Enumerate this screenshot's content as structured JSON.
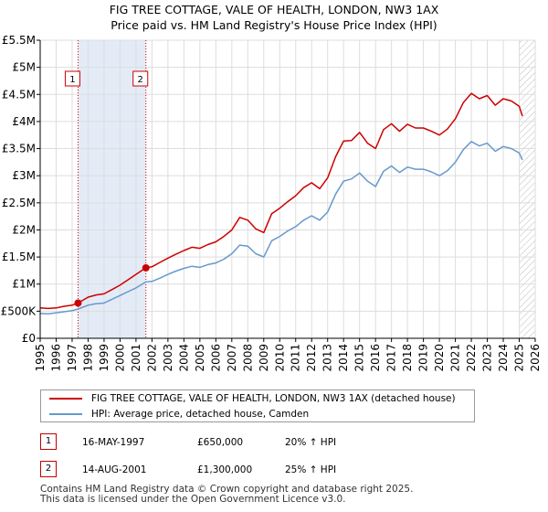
{
  "title_line1": "FIG TREE COTTAGE, VALE OF HEALTH, LONDON, NW3 1AX",
  "title_line2": "Price paid vs. HM Land Registry's House Price Index (HPI)",
  "colors": {
    "property": "#cc0000",
    "hpi": "#6699cc",
    "shade": "#dce6f5",
    "grid": "#dddddd",
    "hatch": "#bbbbbb"
  },
  "chart_data": {
    "type": "line",
    "title": "FIG TREE COTTAGE, VALE OF HEALTH, LONDON, NW3 1AX — Price paid vs. HM Land Registry's House Price Index (HPI)",
    "xlabel": "",
    "ylabel": "",
    "xlim": [
      1995,
      2026
    ],
    "ylim": [
      0,
      5500000
    ],
    "x_ticks": [
      1995,
      1996,
      1997,
      1998,
      1999,
      2000,
      2001,
      2002,
      2003,
      2004,
      2005,
      2006,
      2007,
      2008,
      2009,
      2010,
      2011,
      2012,
      2013,
      2014,
      2015,
      2016,
      2017,
      2018,
      2019,
      2020,
      2021,
      2022,
      2023,
      2024,
      2025,
      2026
    ],
    "x_tick_labels": [
      "1995",
      "1996",
      "1997",
      "1998",
      "1999",
      "2000",
      "2001",
      "2002",
      "2003",
      "2004",
      "2005",
      "2006",
      "2007",
      "2008",
      "2009",
      "2010",
      "2011",
      "2012",
      "2013",
      "2014",
      "2015",
      "2016",
      "2017",
      "2018",
      "2019",
      "2020",
      "2021",
      "2022",
      "2023",
      "2024",
      "2025",
      "2026"
    ],
    "y_ticks": [
      0,
      500000,
      1000000,
      1500000,
      2000000,
      2500000,
      3000000,
      3500000,
      4000000,
      4500000,
      5000000,
      5500000
    ],
    "y_tick_labels": [
      "£0",
      "£500K",
      "£1M",
      "£1.5M",
      "£2M",
      "£2.5M",
      "£3M",
      "£3.5M",
      "£4M",
      "£4.5M",
      "£5M",
      "£5.5M"
    ],
    "grid": true,
    "shaded_ranges": [
      {
        "from": 1997.37,
        "to": 2001.62
      }
    ],
    "future_hatch_from": 2025.0,
    "legend_position": "below",
    "series": [
      {
        "name": "FIG TREE COTTAGE, VALE OF HEALTH, LONDON, NW3 1AX (detached house)",
        "color": "#cc0000",
        "x": [
          1995,
          1995.5,
          1996,
          1996.5,
          1997,
          1997.37,
          1998,
          1998.5,
          1999,
          1999.5,
          2000,
          2000.5,
          2001,
          2001.62,
          2002,
          2002.5,
          2003,
          2003.5,
          2004,
          2004.5,
          2005,
          2005.5,
          2006,
          2006.5,
          2007,
          2007.5,
          2008,
          2008.5,
          2009,
          2009.5,
          2010,
          2010.5,
          2011,
          2011.5,
          2012,
          2012.5,
          2013,
          2013.5,
          2014,
          2014.5,
          2015,
          2015.5,
          2016,
          2016.5,
          2017,
          2017.5,
          2018,
          2018.5,
          2019,
          2019.5,
          2020,
          2020.5,
          2021,
          2021.5,
          2022,
          2022.5,
          2023,
          2023.5,
          2024,
          2024.5,
          2025,
          2025.2
        ],
        "values": [
          560000,
          550000,
          560000,
          590000,
          610000,
          650000,
          760000,
          800000,
          820000,
          900000,
          980000,
          1080000,
          1180000,
          1300000,
          1320000,
          1400000,
          1480000,
          1550000,
          1620000,
          1680000,
          1660000,
          1730000,
          1780000,
          1880000,
          2000000,
          2230000,
          2180000,
          2020000,
          1950000,
          2300000,
          2400000,
          2520000,
          2630000,
          2780000,
          2870000,
          2760000,
          2960000,
          3350000,
          3640000,
          3650000,
          3800000,
          3600000,
          3500000,
          3850000,
          3960000,
          3820000,
          3950000,
          3880000,
          3880000,
          3820000,
          3750000,
          3860000,
          4050000,
          4350000,
          4520000,
          4420000,
          4480000,
          4300000,
          4420000,
          4380000,
          4280000,
          4100000
        ]
      },
      {
        "name": "HPI: Average price, detached house, Camden",
        "color": "#6699cc",
        "x": [
          1995,
          1995.5,
          1996,
          1996.5,
          1997,
          1997.37,
          1998,
          1998.5,
          1999,
          1999.5,
          2000,
          2000.5,
          2001,
          2001.62,
          2002,
          2002.5,
          2003,
          2003.5,
          2004,
          2004.5,
          2005,
          2005.5,
          2006,
          2006.5,
          2007,
          2007.5,
          2008,
          2008.5,
          2009,
          2009.5,
          2010,
          2010.5,
          2011,
          2011.5,
          2012,
          2012.5,
          2013,
          2013.5,
          2014,
          2014.5,
          2015,
          2015.5,
          2016,
          2016.5,
          2017,
          2017.5,
          2018,
          2018.5,
          2019,
          2019.5,
          2020,
          2020.5,
          2021,
          2021.5,
          2022,
          2022.5,
          2023,
          2023.5,
          2024,
          2024.5,
          2025,
          2025.2
        ],
        "values": [
          460000,
          450000,
          470000,
          490000,
          510000,
          540000,
          610000,
          640000,
          650000,
          720000,
          790000,
          860000,
          930000,
          1040000,
          1050000,
          1110000,
          1180000,
          1240000,
          1290000,
          1330000,
          1310000,
          1360000,
          1390000,
          1460000,
          1560000,
          1720000,
          1700000,
          1560000,
          1500000,
          1800000,
          1880000,
          1980000,
          2060000,
          2180000,
          2260000,
          2180000,
          2330000,
          2660000,
          2900000,
          2940000,
          3050000,
          2900000,
          2800000,
          3080000,
          3180000,
          3060000,
          3160000,
          3120000,
          3120000,
          3070000,
          3000000,
          3090000,
          3250000,
          3480000,
          3630000,
          3550000,
          3600000,
          3450000,
          3540000,
          3500000,
          3420000,
          3290000
        ]
      }
    ],
    "annotations": [
      {
        "label": "1",
        "x": 1997.37,
        "value": 650000
      },
      {
        "label": "2",
        "x": 2001.62,
        "value": 1300000
      }
    ]
  },
  "legend": {
    "property_label": "FIG TREE COTTAGE, VALE OF HEALTH, LONDON, NW3 1AX (detached house)",
    "hpi_label": "HPI: Average price, detached house, Camden"
  },
  "transactions": [
    {
      "num": "1",
      "date": "16-MAY-1997",
      "price": "£650,000",
      "hpi": "20% ↑ HPI"
    },
    {
      "num": "2",
      "date": "14-AUG-2001",
      "price": "£1,300,000",
      "hpi": "25% ↑ HPI"
    }
  ],
  "footer": {
    "line1": "Contains HM Land Registry data © Crown copyright and database right 2025.",
    "line2": "This data is licensed under the Open Government Licence v3.0."
  }
}
